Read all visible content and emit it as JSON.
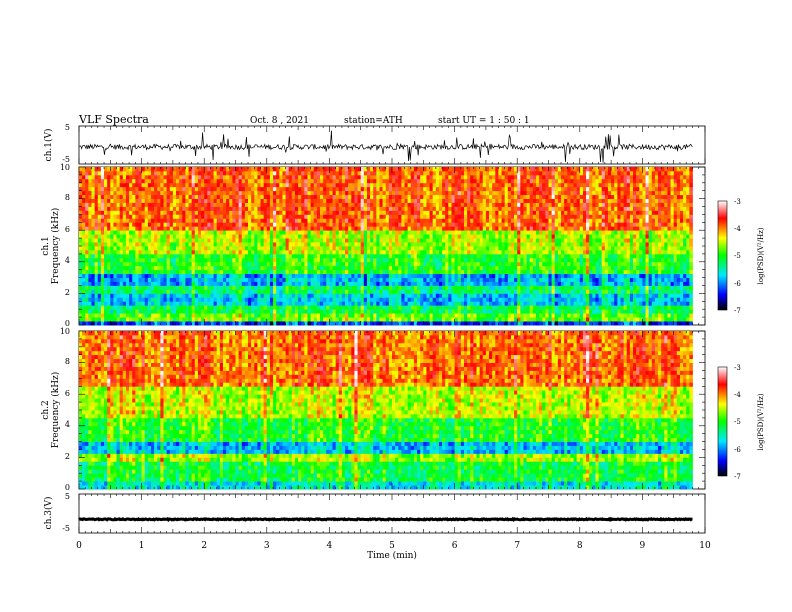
{
  "header": {
    "title": "VLF  Spectra",
    "date": "Oct. 8  , 2021",
    "station": "station=ATH",
    "start": "start  UT  =   1  : 50 : 1"
  },
  "chart_data": [
    {
      "id": "ch1-waveform",
      "type": "line",
      "ylabel": "ch.1(V)",
      "ylim": [
        -5,
        5
      ],
      "yticks": [
        "5",
        "-5"
      ],
      "xlim": [
        0,
        10
      ],
      "data_end_min": 9.8,
      "trace_level_v": -0.5,
      "color": "#000000"
    },
    {
      "id": "ch1-spectrogram",
      "type": "heatmap",
      "ylabel": "ch.1",
      "ylabel2": "Frequency  (kHz)",
      "ylim": [
        0,
        10
      ],
      "yticks": [
        "0",
        "2",
        "4",
        "6",
        "8",
        "10"
      ],
      "xlim": [
        0,
        10
      ],
      "data_end_min": 9.8,
      "bands_khz": [
        {
          "range": [
            0,
            0.3
          ],
          "level": -6.3
        },
        {
          "range": [
            0.3,
            0.7
          ],
          "level": -4.8
        },
        {
          "range": [
            0.7,
            1.2
          ],
          "level": -5.2
        },
        {
          "range": [
            1.2,
            2.0
          ],
          "level": -5.8
        },
        {
          "range": [
            2.0,
            2.4
          ],
          "level": -5.3
        },
        {
          "range": [
            2.4,
            3.2
          ],
          "level": -5.9
        },
        {
          "range": [
            3.2,
            4.5
          ],
          "level": -5.0
        },
        {
          "range": [
            4.5,
            6.0
          ],
          "level": -4.6
        },
        {
          "range": [
            6.0,
            10.0
          ],
          "level": -3.9
        }
      ],
      "colorbar": {
        "label": "log(PSD)(V²/Hz)",
        "range": [
          -7,
          -3
        ],
        "ticks": [
          "-3",
          "-4",
          "-5",
          "-6",
          "-7"
        ]
      }
    },
    {
      "id": "ch2-spectrogram",
      "type": "heatmap",
      "ylabel": "ch.2",
      "ylabel2": "Frequency  (kHz)",
      "ylim": [
        0,
        10
      ],
      "yticks": [
        "0",
        "2",
        "4",
        "6",
        "8",
        "10"
      ],
      "xlim": [
        0,
        10
      ],
      "data_end_min": 9.8,
      "bands_khz": [
        {
          "range": [
            0,
            0.4
          ],
          "level": -5.6
        },
        {
          "range": [
            0.4,
            1.8
          ],
          "level": -5.1
        },
        {
          "range": [
            1.8,
            2.2
          ],
          "level": -4.6
        },
        {
          "range": [
            2.2,
            3.0
          ],
          "level": -5.8
        },
        {
          "range": [
            3.0,
            4.5
          ],
          "level": -5.0
        },
        {
          "range": [
            4.5,
            6.5
          ],
          "level": -4.5
        },
        {
          "range": [
            6.5,
            10.0
          ],
          "level": -3.9
        }
      ],
      "colorbar": {
        "label": "log(PSD)(V²/Hz)",
        "range": [
          -7,
          -3
        ],
        "ticks": [
          "-3",
          "-4",
          "-5",
          "-6",
          "-7"
        ]
      }
    },
    {
      "id": "ch3-waveform",
      "type": "line",
      "ylabel": "ch.3(V)",
      "ylim": [
        -5,
        5
      ],
      "yticks": [
        "5",
        "-5"
      ],
      "xlim": [
        0,
        10
      ],
      "data_end_min": 9.8,
      "trace_level_v": -1.5,
      "color": "#000000"
    }
  ],
  "x_axis": {
    "label": "Time  (min)",
    "ticks": [
      "0",
      "1",
      "2",
      "3",
      "4",
      "5",
      "6",
      "7",
      "8",
      "9",
      "10"
    ]
  }
}
